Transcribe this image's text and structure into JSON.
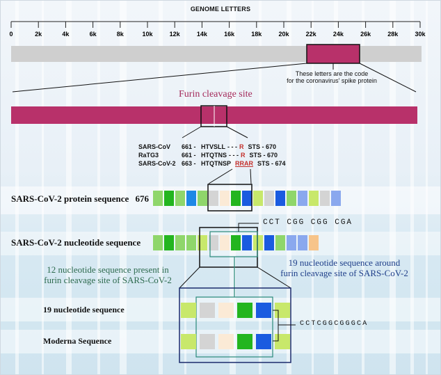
{
  "axis": {
    "title": "GENOME LETTERS",
    "ticks": [
      "0",
      "2k",
      "4k",
      "6k",
      "8k",
      "10k",
      "12k",
      "14k",
      "16k",
      "18k",
      "20k",
      "22k",
      "24k",
      "26k",
      "28k",
      "30k"
    ]
  },
  "spike_caption": [
    "These letters are the code",
    "for the coronavirus' spike protein"
  ],
  "furin_title": "Furin cleavage site",
  "alignment": [
    {
      "name": "SARS-CoV",
      "pos": "661 -",
      "seq": "HTVSLL",
      "gap": "- - -",
      "insert": "R",
      "tail": "STS - 670"
    },
    {
      "name": "RaTG3",
      "pos": "661 -",
      "seq": "HTQTNS",
      "gap": "- - -",
      "insert": "R",
      "tail": "STS - 670"
    },
    {
      "name": "SARS-CoV-2",
      "pos": "663 -",
      "seq": "HTQTNSP",
      "gap": "",
      "insert": "RRAR",
      "tail": "STS - 674"
    }
  ],
  "protein_label": "SARS-CoV-2 protein sequence",
  "protein_number": "676",
  "nucleotide_label": "SARS-CoV-2 nucleotide sequence",
  "codons_top": "CCT CGG CGG CGA",
  "note_12": [
    "12 nucleotide sequence present in",
    "furin cleavage site of SARS-CoV-2"
  ],
  "note_19": [
    "19 nucleotide sequence around",
    "furin cleavage site of SARS-CoV-2"
  ],
  "row_19_label": "19 nucleotide sequence",
  "row_moderna_label": "Moderna Sequence",
  "codons_bottom": "CCTCGGCGGGCA",
  "colors": {
    "magenta": "#b8316a",
    "bar_grey": "#cfcfcf",
    "light_green": "#8fd66b",
    "green": "#23b51f",
    "blue": "#1a5be0",
    "light_blue": "#1e88e5",
    "periwinkle": "#8aa8ee",
    "peach": "#f7c48a",
    "yellow_green": "#c8e86b",
    "cream": "#fbead6",
    "grey": "#d4d4d4",
    "teal_line": "#2a8a7a"
  },
  "protein_cells": [
    "light_green",
    "green",
    "light_green",
    "light_blue",
    "light_green",
    "grey",
    "cream",
    "green",
    "blue",
    "yellow_green",
    "grey",
    "blue",
    "light_green",
    "periwinkle",
    "yellow_green",
    "grey",
    "periwinkle"
  ],
  "nucleotide_cells": [
    "light_green",
    "green",
    "light_green",
    "light_green",
    "yellow_green",
    "grey",
    "cream",
    "green",
    "blue",
    "yellow_green",
    "blue",
    "light_green",
    "periwinkle",
    "periwinkle",
    "peach"
  ],
  "box_cells_19": [
    "yellow_green",
    "grey",
    "cream",
    "green",
    "blue",
    "yellow_green"
  ],
  "box_cells_moderna": [
    "yellow_green",
    "grey",
    "cream",
    "green",
    "blue",
    "yellow_green"
  ]
}
